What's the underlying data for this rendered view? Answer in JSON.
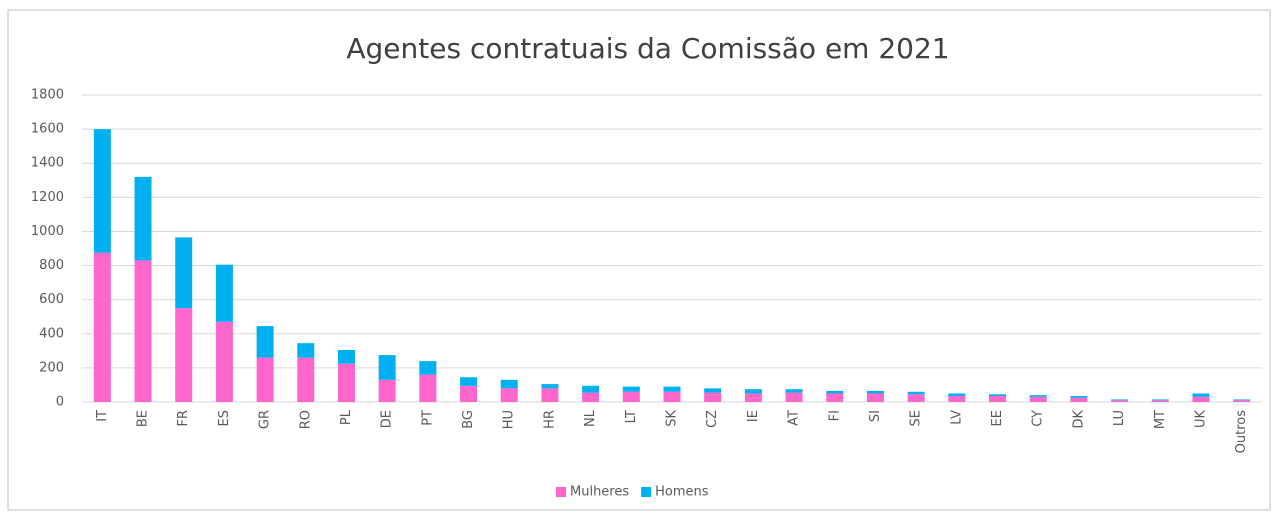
{
  "chart_data": {
    "type": "stacked_bar",
    "title": "Agentes contratuais da Comissão em 2021",
    "categories": [
      "IT",
      "BE",
      "FR",
      "ES",
      "GR",
      "RO",
      "PL",
      "DE",
      "PT",
      "BG",
      "HU",
      "HR",
      "NL",
      "LT",
      "SK",
      "CZ",
      "IE",
      "AT",
      "FI",
      "SI",
      "SE",
      "LV",
      "EE",
      "CY",
      "DK",
      "LU",
      "MT",
      "UK",
      "Outros"
    ],
    "series": [
      {
        "name": "Mulheres",
        "color": "#ff66cc",
        "values": [
          875,
          830,
          550,
          470,
          260,
          260,
          225,
          130,
          160,
          95,
          80,
          80,
          55,
          60,
          60,
          55,
          50,
          55,
          50,
          50,
          45,
          35,
          35,
          30,
          25,
          10,
          10,
          30,
          10
        ]
      },
      {
        "name": "Homens",
        "color": "#00b0f0",
        "values": [
          725,
          490,
          415,
          335,
          185,
          85,
          80,
          145,
          80,
          50,
          50,
          25,
          40,
          30,
          30,
          25,
          25,
          20,
          15,
          15,
          15,
          15,
          10,
          10,
          10,
          5,
          5,
          20,
          5
        ]
      }
    ],
    "ylim": [
      0,
      1800
    ],
    "yticks": [
      0,
      200,
      400,
      600,
      800,
      1000,
      1200,
      1400,
      1600,
      1800
    ],
    "grid": true,
    "legend": "bottom"
  }
}
